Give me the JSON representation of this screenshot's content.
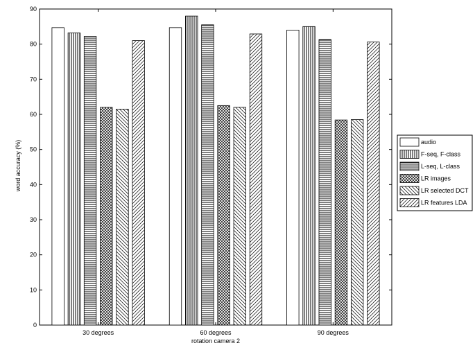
{
  "chart_data": {
    "type": "bar",
    "xlabel": "rotation camera 2",
    "ylabel": "word accuracy (%)",
    "ylim": [
      0,
      90
    ],
    "yticks": [
      0,
      10,
      20,
      30,
      40,
      50,
      60,
      70,
      80,
      90
    ],
    "categories": [
      "30 degrees",
      "60 degrees",
      "90 degrees"
    ],
    "grid": false,
    "legend_position": "right",
    "series": [
      {
        "name": "audio",
        "pattern": "none",
        "values": [
          84.7,
          84.7,
          84.0
        ]
      },
      {
        "name": "F-seq, F-class",
        "pattern": "vertical",
        "values": [
          83.2,
          88.0,
          85.0
        ]
      },
      {
        "name": "L-seq, L-class",
        "pattern": "horizontal",
        "values": [
          82.2,
          85.5,
          81.3
        ]
      },
      {
        "name": "LR images",
        "pattern": "crosshatch",
        "values": [
          62.0,
          62.5,
          58.4
        ]
      },
      {
        "name": "LR selected DCT",
        "pattern": "back-diagonal",
        "values": [
          61.5,
          62.0,
          58.5
        ]
      },
      {
        "name": "LR features LDA",
        "pattern": "forward-diagonal",
        "values": [
          81.0,
          82.9,
          80.6
        ]
      }
    ]
  }
}
